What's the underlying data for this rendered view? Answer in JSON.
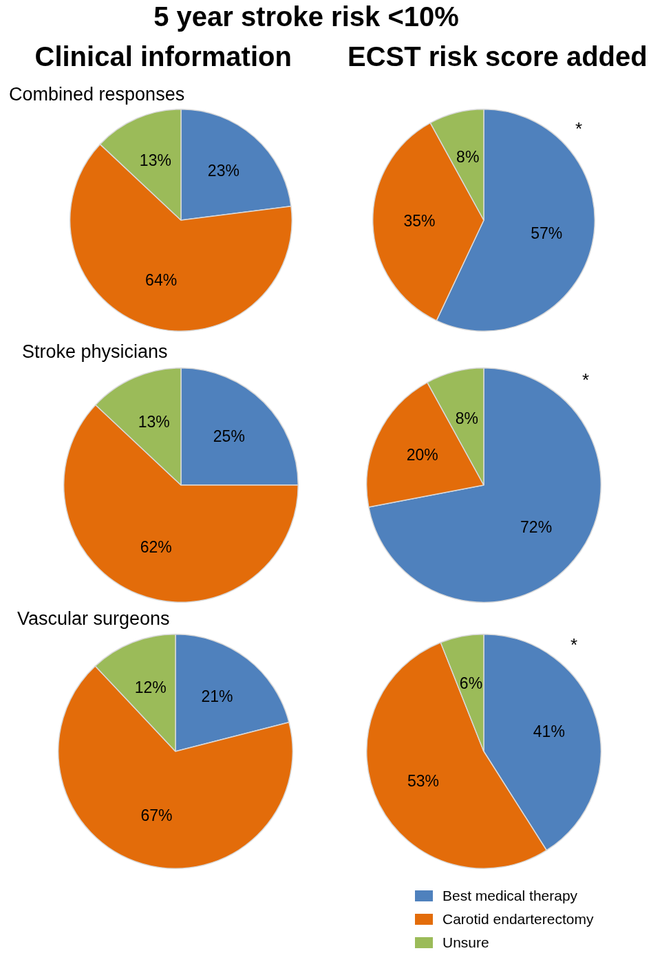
{
  "chart_data": [
    {
      "type": "other",
      "title": "5 year stroke risk <10%",
      "annotations": [
        "Clinical information",
        "ECST risk score added"
      ]
    },
    {
      "type": "pie",
      "title": "Combined responses",
      "categories": [
        null,
        null,
        null
      ],
      "values": [
        23,
        64,
        13
      ],
      "value_labels": [
        "23%",
        "64%",
        "13%"
      ],
      "colors": [
        "#4f81bd",
        "#e36c0a",
        "#9bbb59"
      ]
    },
    {
      "type": "pie",
      "categories": [
        null,
        null,
        null
      ],
      "values": [
        57,
        35,
        8
      ],
      "value_labels": [
        "57%",
        "35%",
        "8%"
      ],
      "colors": [
        "#4f81bd",
        "#e36c0a",
        "#9bbb59"
      ],
      "annotations": [
        "*"
      ]
    },
    {
      "type": "pie",
      "title": "Stroke physicians",
      "categories": [
        null,
        null,
        null
      ],
      "values": [
        25,
        62,
        13
      ],
      "value_labels": [
        "25%",
        "62%",
        "13%"
      ],
      "colors": [
        "#4f81bd",
        "#e36c0a",
        "#9bbb59"
      ]
    },
    {
      "type": "pie",
      "categories": [
        null,
        null,
        null
      ],
      "values": [
        72,
        20,
        8
      ],
      "value_labels": [
        "72%",
        "20%",
        "8%"
      ],
      "colors": [
        "#4f81bd",
        "#e36c0a",
        "#9bbb59"
      ],
      "annotations": [
        "*"
      ]
    },
    {
      "type": "pie",
      "title": "Vascular surgeons",
      "categories": [
        null,
        null,
        null
      ],
      "values": [
        21,
        67,
        12
      ],
      "value_labels": [
        "21%",
        "67%",
        "12%"
      ],
      "colors": [
        "#4f81bd",
        "#e36c0a",
        "#9bbb59"
      ]
    },
    {
      "type": "pie",
      "categories": [
        "Best medical therapy",
        "Carotid endarterectomy",
        "Unsure"
      ],
      "values": [
        41,
        53,
        6
      ],
      "value_labels": [
        "41%",
        "53%",
        "6%"
      ],
      "colors": [
        "#4f81bd",
        "#e36c0a",
        "#9bbb59"
      ],
      "annotations": [
        "*"
      ],
      "legend": "bottom right"
    }
  ]
}
